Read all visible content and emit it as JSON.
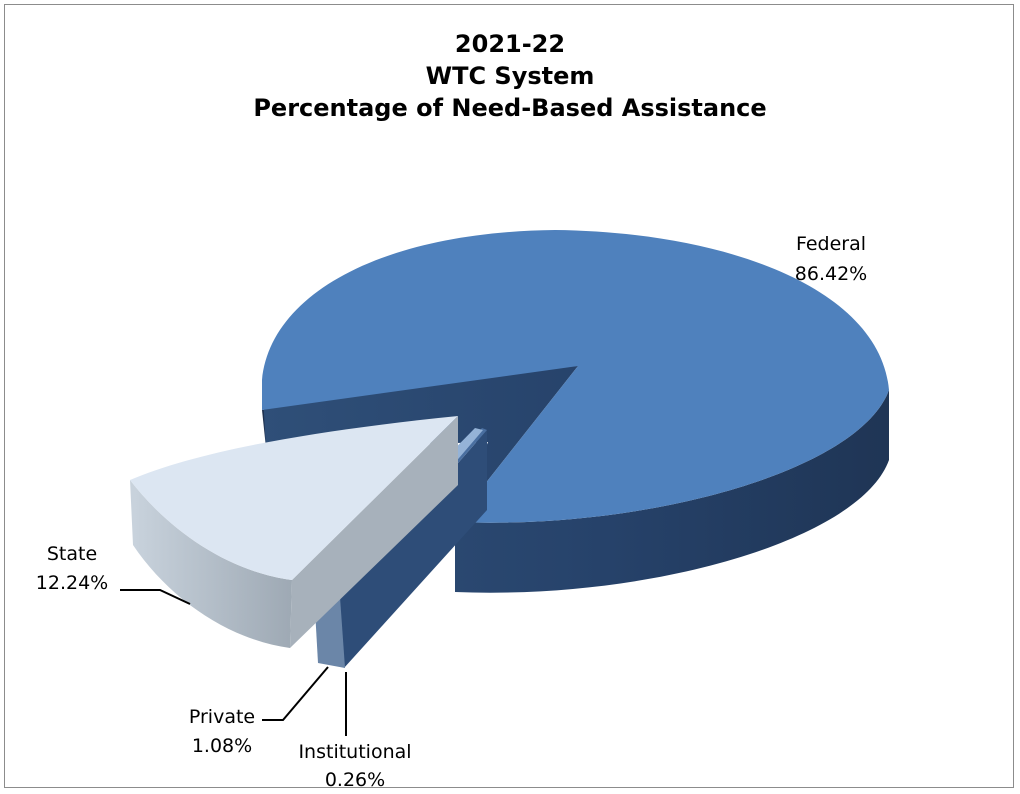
{
  "chart_data": {
    "type": "pie",
    "title_lines": [
      "2021-22",
      "WTC System",
      "Percentage of Need-Based Assistance"
    ],
    "slices": [
      {
        "label": "Federal",
        "value_text": "86.42%",
        "value": 86.42,
        "color": "#4f81bd"
      },
      {
        "label": "Institutional",
        "value_text": "0.26%",
        "value": 0.26,
        "color": "#2e4d78"
      },
      {
        "label": "Private",
        "value_text": "1.08%",
        "value": 1.08,
        "color": "#95b3d7"
      },
      {
        "label": "State",
        "value_text": "12.24%",
        "value": 12.24,
        "color": "#dce6f2"
      }
    ],
    "style": "3d-exploded"
  }
}
